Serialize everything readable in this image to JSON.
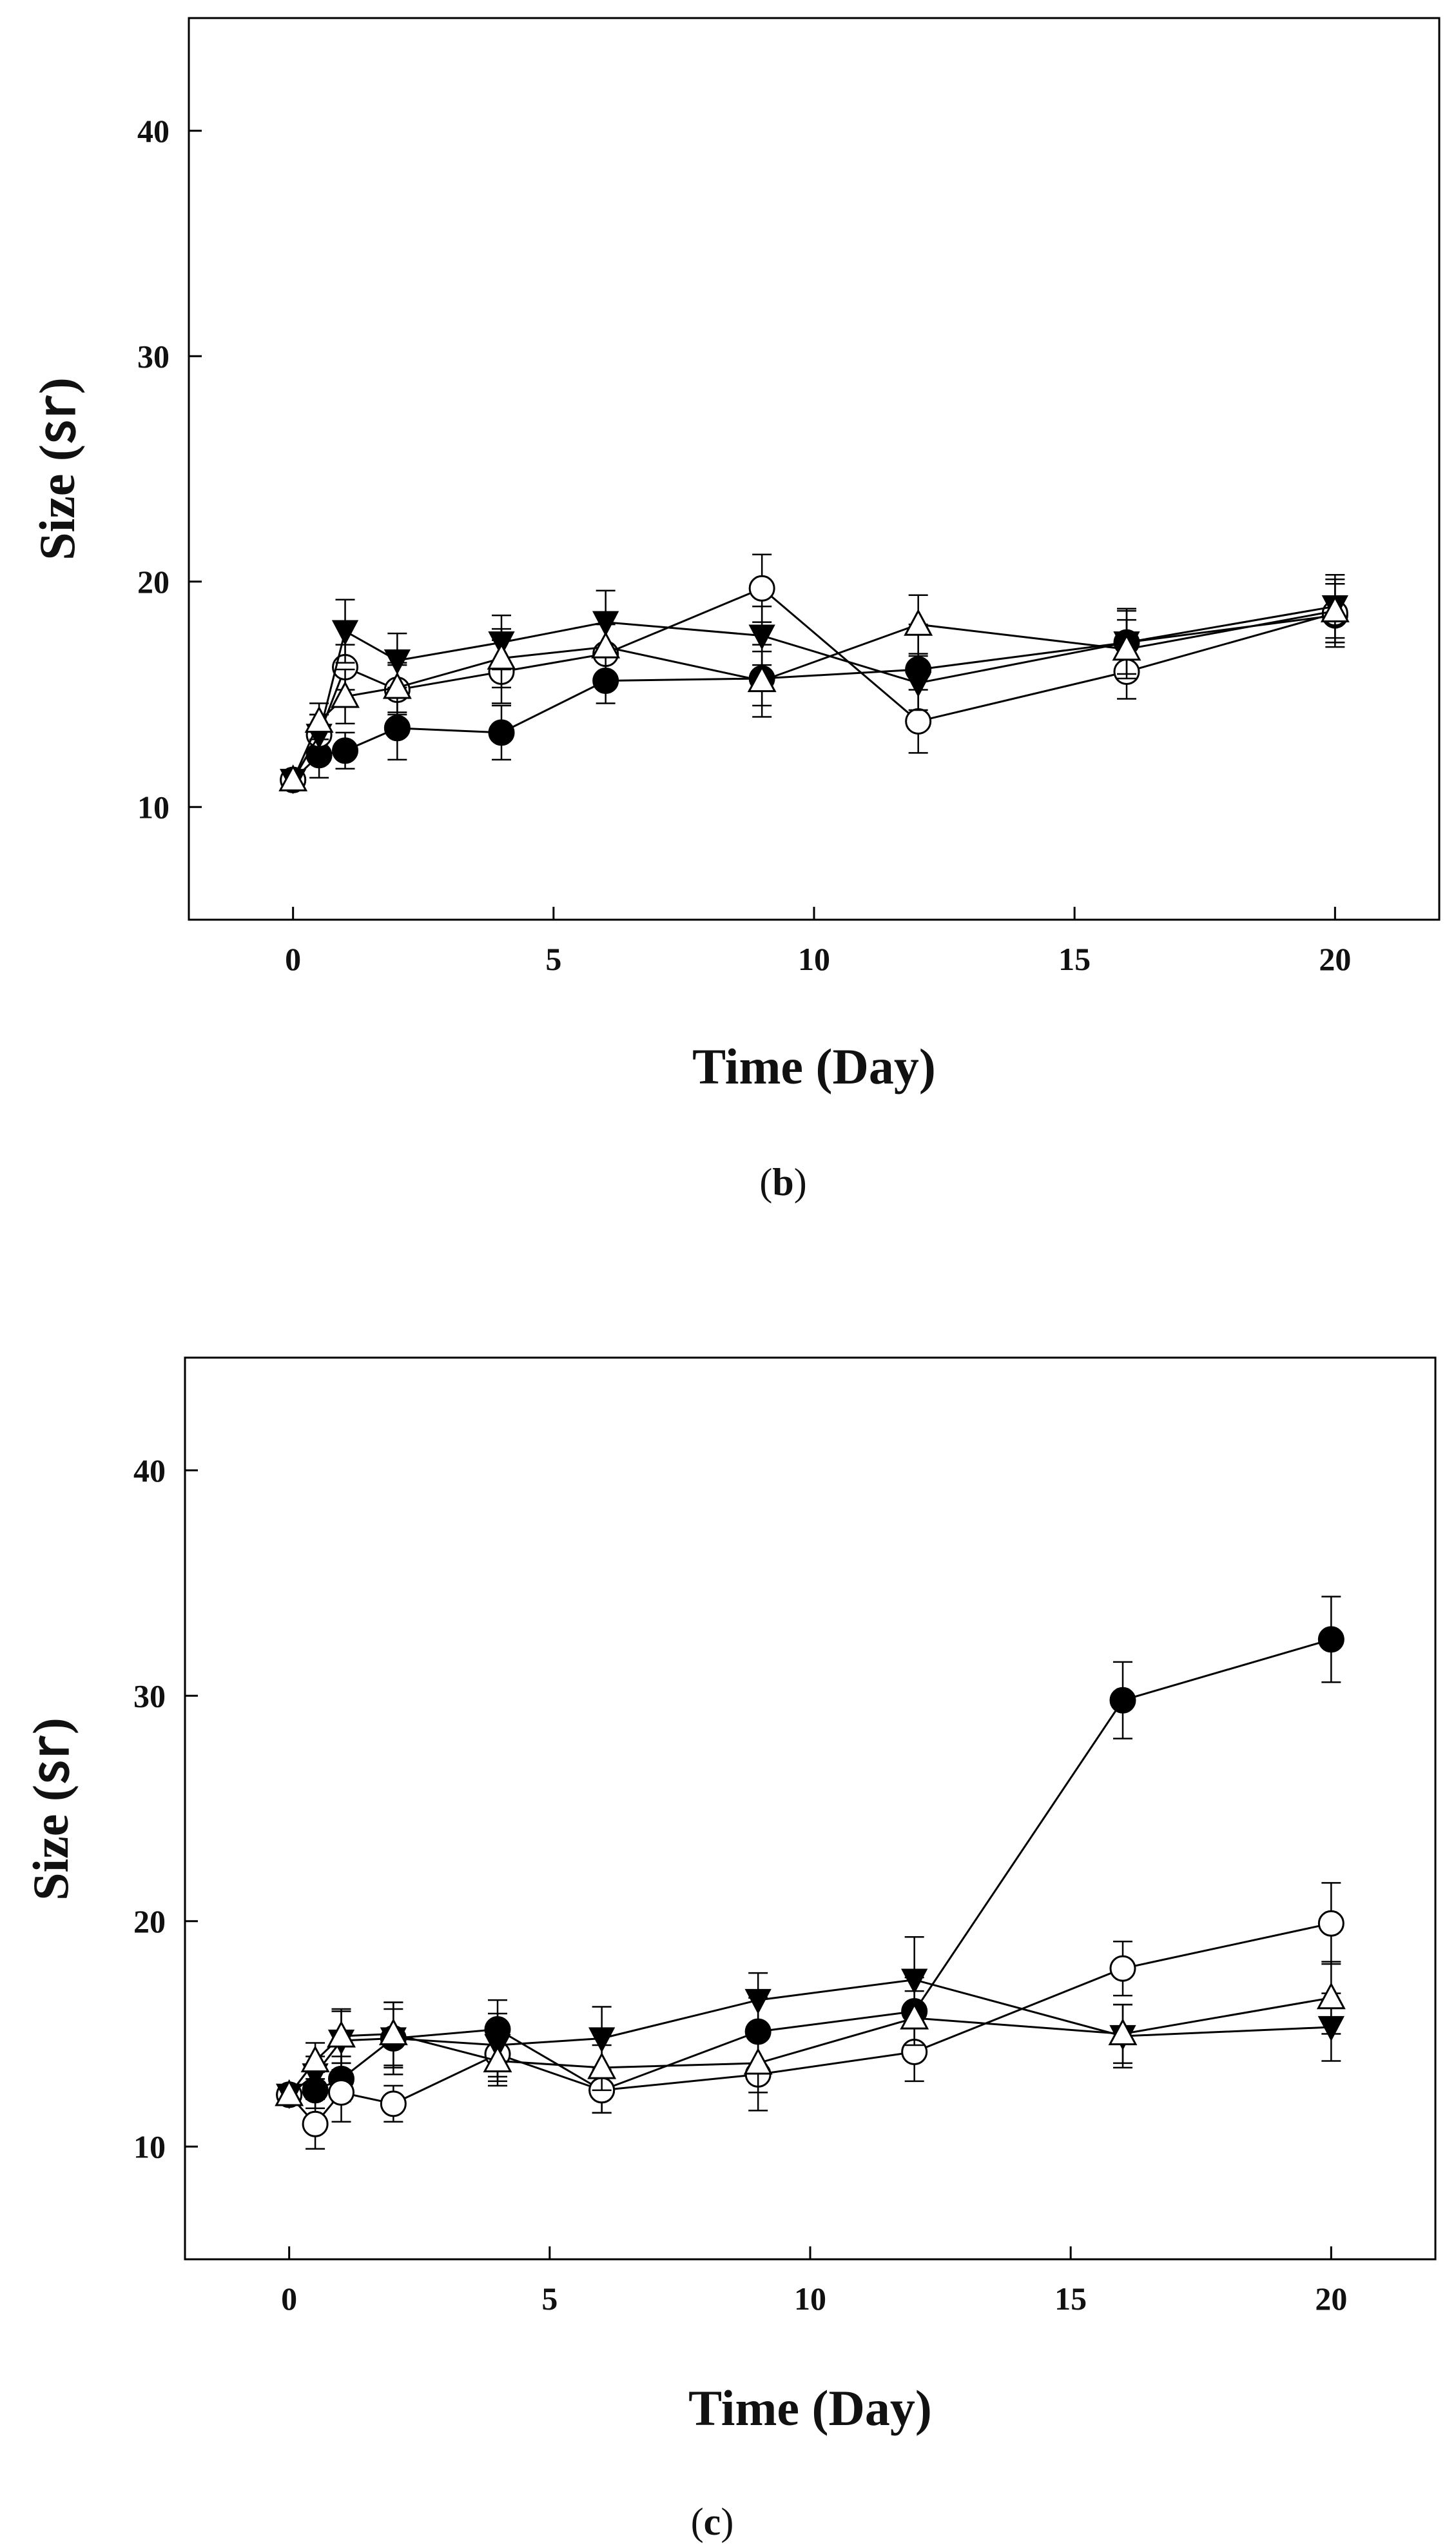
{
  "figure": {
    "panels": [
      "b",
      "c"
    ]
  },
  "chart_data": [
    {
      "panel_label": "b",
      "type": "line",
      "title": "",
      "xlabel": "Time (Day)",
      "ylabel": "Size (㏛)",
      "xlim": [
        -2,
        22
      ],
      "ylim": [
        5,
        45
      ],
      "xticks": [
        0,
        5,
        10,
        15,
        20
      ],
      "yticks": [
        10,
        20,
        30,
        40
      ],
      "grid": false,
      "legend": "none",
      "series": [
        {
          "name": "filled circle",
          "marker": "circle-filled",
          "x": [
            0,
            0.5,
            1,
            2,
            4,
            6,
            9,
            12,
            16,
            20
          ],
          "y": [
            11.2,
            12.3,
            12.5,
            13.5,
            13.3,
            15.6,
            15.7,
            16.1,
            17.3,
            18.5
          ],
          "err": [
            0.3,
            1.0,
            0.8,
            1.4,
            1.2,
            1.0,
            1.2,
            2.0,
            1.5,
            1.4
          ]
        },
        {
          "name": "open circle",
          "marker": "circle-open",
          "x": [
            0,
            0.5,
            1,
            2,
            4,
            6,
            9,
            12,
            16,
            20
          ],
          "y": [
            11.2,
            13.2,
            16.2,
            15.2,
            16.0,
            16.8,
            19.7,
            13.8,
            16.0,
            18.6
          ],
          "err": [
            0.3,
            0.9,
            1.0,
            1.1,
            1.4,
            1.3,
            1.5,
            1.4,
            1.2,
            1.3
          ]
        },
        {
          "name": "filled triangle",
          "marker": "triangle-down-filled",
          "x": [
            0,
            0.5,
            1,
            2,
            4,
            6,
            9,
            12,
            16,
            20
          ],
          "y": [
            11.2,
            13.2,
            17.8,
            16.5,
            17.3,
            18.2,
            17.6,
            15.5,
            17.3,
            18.9
          ],
          "err": [
            0.3,
            0.9,
            1.4,
            1.2,
            1.2,
            1.4,
            1.3,
            1.2,
            1.4,
            1.4
          ]
        },
        {
          "name": "open triangle",
          "marker": "triangle-up-open",
          "x": [
            0,
            0.5,
            1,
            2,
            4,
            6,
            9,
            12,
            16,
            20
          ],
          "y": [
            11.2,
            13.8,
            14.9,
            15.3,
            16.6,
            17.1,
            15.6,
            18.1,
            17.0,
            18.7
          ],
          "err": [
            0.3,
            0.8,
            1.2,
            1.1,
            1.3,
            1.3,
            1.6,
            1.3,
            1.3,
            1.4
          ]
        }
      ]
    },
    {
      "panel_label": "c",
      "type": "line",
      "title": "",
      "xlabel": "Time (Day)",
      "ylabel": "Size (㏛)",
      "xlim": [
        -2,
        22
      ],
      "ylim": [
        5,
        45
      ],
      "xticks": [
        0,
        5,
        10,
        15,
        20
      ],
      "yticks": [
        10,
        20,
        30,
        40
      ],
      "grid": false,
      "legend": "none",
      "series": [
        {
          "name": "filled circle",
          "marker": "circle-filled",
          "x": [
            0,
            0.5,
            1,
            2,
            4,
            6,
            9,
            12,
            16,
            20
          ],
          "y": [
            12.3,
            12.5,
            13.0,
            14.8,
            15.2,
            12.5,
            15.1,
            16.0,
            29.8,
            32.5
          ],
          "err": [
            0.3,
            0.8,
            1.0,
            1.3,
            1.3,
            1.0,
            1.5,
            1.5,
            1.7,
            1.9
          ]
        },
        {
          "name": "open circle",
          "marker": "circle-open",
          "x": [
            0,
            0.5,
            1,
            2,
            4,
            6,
            9,
            12,
            16,
            20
          ],
          "y": [
            12.3,
            11.0,
            12.4,
            11.9,
            14.1,
            12.5,
            13.2,
            14.2,
            17.9,
            19.9
          ],
          "err": [
            0.3,
            1.1,
            1.3,
            0.8,
            1.2,
            1.0,
            1.6,
            1.3,
            1.2,
            1.8
          ]
        },
        {
          "name": "filled triangle",
          "marker": "triangle-down-filled",
          "x": [
            0,
            0.5,
            1,
            2,
            4,
            6,
            9,
            12,
            16,
            20
          ],
          "y": [
            12.3,
            13.2,
            14.7,
            14.8,
            14.5,
            14.8,
            16.5,
            17.4,
            14.9,
            15.3
          ],
          "err": [
            0.3,
            0.8,
            1.3,
            1.6,
            1.4,
            1.4,
            1.2,
            1.9,
            1.4,
            1.5
          ]
        },
        {
          "name": "open triangle",
          "marker": "triangle-up-open",
          "x": [
            0,
            0.5,
            1,
            2,
            4,
            6,
            9,
            12,
            16,
            20
          ],
          "y": [
            12.3,
            13.8,
            14.9,
            15.0,
            13.8,
            13.5,
            13.7,
            15.7,
            15.0,
            16.6
          ],
          "err": [
            0.3,
            0.8,
            1.2,
            1.4,
            1.1,
            1.0,
            1.3,
            1.2,
            1.3,
            1.6
          ]
        }
      ]
    }
  ]
}
